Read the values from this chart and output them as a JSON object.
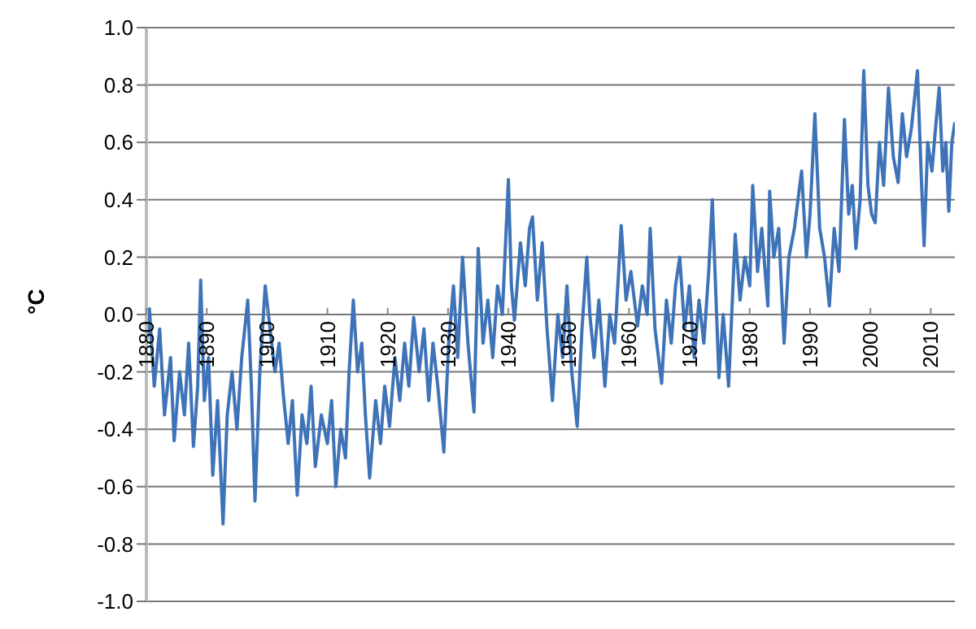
{
  "chart_data": {
    "type": "line",
    "ylabel": "°C",
    "grid": "y",
    "legend": false,
    "marker": "none",
    "line_style": "solid",
    "xlim": [
      1880,
      2014
    ],
    "xticks": [
      1880,
      1890,
      1900,
      1910,
      1920,
      1930,
      1940,
      1950,
      1960,
      1970,
      1980,
      1990,
      2000,
      2010
    ],
    "ylim": [
      -1.0,
      1.0
    ],
    "yticks": [
      {
        "value": -1.0,
        "label": "-1.0"
      },
      {
        "value": -0.8,
        "label": "-0.8"
      },
      {
        "value": -0.6,
        "label": "-0.6"
      },
      {
        "value": -0.4,
        "label": "-0.4"
      },
      {
        "value": -0.2,
        "label": "-0.2"
      },
      {
        "value": 0,
        "label": "0.0"
      },
      {
        "value": 0.2,
        "label": "0.2"
      },
      {
        "value": 0.4,
        "label": "0.4"
      },
      {
        "value": 0.6,
        "label": "0.6"
      },
      {
        "value": 0.8,
        "label": "0.8"
      },
      {
        "value": 1.0,
        "label": "1.0"
      }
    ],
    "series": [
      {
        "color": "#3f73b8",
        "x": [
          1880,
          1880.5,
          1881.3,
          1882.2,
          1883,
          1884,
          1884.6,
          1885.5,
          1886.3,
          1887,
          1887.8,
          1888.5,
          1889,
          1889.6,
          1890.3,
          1891,
          1891.8,
          1892.7,
          1893.4,
          1894.2,
          1895,
          1895.8,
          1896.8,
          1897.4,
          1898,
          1898.8,
          1899.7,
          1900.5,
          1901.3,
          1902,
          1902.7,
          1903.5,
          1904.2,
          1905,
          1905.8,
          1906.6,
          1907.3,
          1908,
          1909,
          1910,
          1910.7,
          1911.4,
          1912.2,
          1913,
          1913.6,
          1914.3,
          1915,
          1915.7,
          1916.3,
          1917,
          1918,
          1918.8,
          1919.5,
          1920.3,
          1921.2,
          1922,
          1922.8,
          1923.5,
          1924.3,
          1925.2,
          1926,
          1926.8,
          1927.5,
          1928.3,
          1929.3,
          1930.1,
          1930.9,
          1931.6,
          1932.4,
          1933.3,
          1934.3,
          1935,
          1935.8,
          1936.6,
          1937.4,
          1938.2,
          1939,
          1940,
          1940.5,
          1941,
          1942,
          1942.8,
          1943.5,
          1944,
          1944.8,
          1945.6,
          1946.4,
          1947.3,
          1948.2,
          1949,
          1949.7,
          1950.5,
          1951.4,
          1952.2,
          1953,
          1953.5,
          1954.2,
          1955,
          1956,
          1956.8,
          1957.6,
          1958.7,
          1959.5,
          1960.3,
          1961.4,
          1962.2,
          1963,
          1963.5,
          1964.3,
          1965.4,
          1966.2,
          1967,
          1967.7,
          1968.4,
          1969.2,
          1970,
          1970.8,
          1971.6,
          1972.4,
          1973.2,
          1973.8,
          1974.9,
          1975.6,
          1976.5,
          1977.6,
          1978.4,
          1979.2,
          1980,
          1980.5,
          1981.3,
          1982,
          1983,
          1983.3,
          1984,
          1984.8,
          1985.7,
          1986.5,
          1987.4,
          1988.6,
          1989.4,
          1990,
          1990.8,
          1991.6,
          1992.4,
          1993.2,
          1994,
          1994.8,
          1995.7,
          1996.4,
          1997,
          1997.6,
          1998.3,
          1998.9,
          1999.6,
          2000.2,
          2000.8,
          2001.5,
          2002.2,
          2003,
          2003.8,
          2004.6,
          2005.3,
          2006,
          2006.8,
          2007.8,
          2008.4,
          2008.9,
          2009.5,
          2010.2,
          2010.8,
          2011.4,
          2012,
          2012.5,
          2013,
          2013.5,
          2014
        ],
        "values": [
          -0.1,
          0.02,
          -0.25,
          -0.05,
          -0.35,
          -0.15,
          -0.44,
          -0.2,
          -0.35,
          -0.1,
          -0.46,
          -0.25,
          0.12,
          -0.3,
          -0.15,
          -0.56,
          -0.3,
          -0.73,
          -0.35,
          -0.2,
          -0.4,
          -0.15,
          0.05,
          -0.25,
          -0.65,
          -0.2,
          0.1,
          -0.05,
          -0.2,
          -0.1,
          -0.28,
          -0.45,
          -0.3,
          -0.63,
          -0.35,
          -0.45,
          -0.25,
          -0.53,
          -0.35,
          -0.45,
          -0.3,
          -0.6,
          -0.4,
          -0.5,
          -0.2,
          0.05,
          -0.2,
          -0.1,
          -0.35,
          -0.57,
          -0.3,
          -0.45,
          -0.25,
          -0.39,
          -0.15,
          -0.3,
          -0.1,
          -0.25,
          -0.01,
          -0.2,
          -0.05,
          -0.3,
          -0.1,
          -0.25,
          -0.48,
          -0.1,
          0.1,
          -0.15,
          0.2,
          -0.1,
          -0.34,
          0.23,
          -0.1,
          0.05,
          -0.15,
          0.1,
          0.0,
          0.47,
          0.1,
          -0.02,
          0.25,
          0.1,
          0.3,
          0.34,
          0.05,
          0.25,
          -0.05,
          -0.3,
          0.0,
          -0.15,
          0.1,
          -0.2,
          -0.39,
          -0.05,
          0.2,
          0.0,
          -0.15,
          0.05,
          -0.25,
          0.0,
          -0.1,
          0.31,
          0.05,
          0.15,
          -0.04,
          0.1,
          0.0,
          0.3,
          -0.05,
          -0.24,
          0.05,
          -0.1,
          0.1,
          0.2,
          -0.05,
          0.1,
          -0.15,
          0.05,
          -0.1,
          0.15,
          0.4,
          -0.22,
          0.0,
          -0.25,
          0.28,
          0.05,
          0.2,
          0.1,
          0.45,
          0.15,
          0.3,
          0.03,
          0.43,
          0.2,
          0.3,
          -0.1,
          0.2,
          0.3,
          0.5,
          0.2,
          0.35,
          0.7,
          0.3,
          0.2,
          0.03,
          0.3,
          0.15,
          0.68,
          0.35,
          0.45,
          0.23,
          0.4,
          0.85,
          0.45,
          0.35,
          0.32,
          0.6,
          0.45,
          0.79,
          0.55,
          0.46,
          0.7,
          0.55,
          0.65,
          0.85,
          0.5,
          0.24,
          0.6,
          0.5,
          0.65,
          0.79,
          0.5,
          0.6,
          0.36,
          0.6,
          0.67
        ]
      }
    ]
  }
}
